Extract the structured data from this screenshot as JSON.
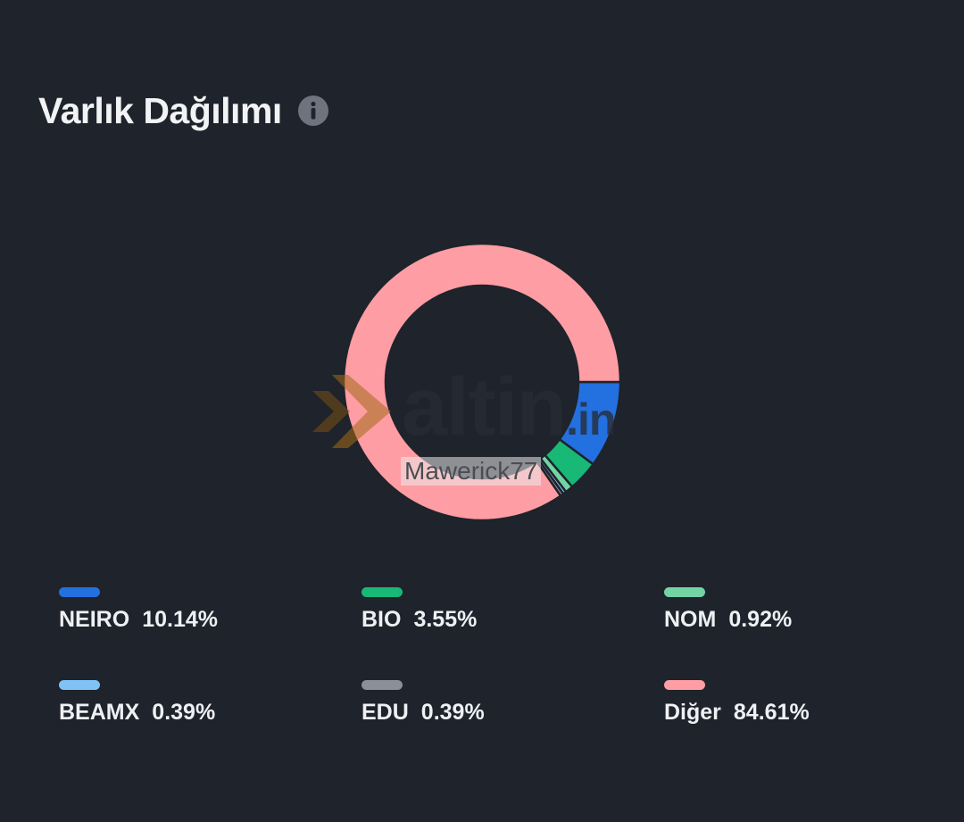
{
  "header": {
    "title": "Varlık Dağılımı",
    "info_icon": "info-icon"
  },
  "watermark": {
    "brand": "altin",
    "brand_ext": ".in",
    "user": "Mawerick77"
  },
  "colors": {
    "background": "#1f232b",
    "NEIRO": "#2370e0",
    "BIO": "#18b877",
    "NOM": "#72d4a4",
    "BEAMX": "#80c2f6",
    "EDU": "#8a8f99",
    "Diğer": "#fe9da3"
  },
  "chart_data": {
    "type": "pie",
    "donut": true,
    "title": "",
    "legend": "bottom",
    "series": [
      {
        "values": [
          {
            "label": "NEIRO",
            "value": 10.14,
            "display": "10.14%",
            "color": "#2370e0"
          },
          {
            "label": "BIO",
            "value": 3.55,
            "display": "3.55%",
            "color": "#18b877"
          },
          {
            "label": "NOM",
            "value": 0.92,
            "display": "0.92%",
            "color": "#72d4a4"
          },
          {
            "label": "BEAMX",
            "value": 0.39,
            "display": "0.39%",
            "color": "#80c2f6"
          },
          {
            "label": "EDU",
            "value": 0.39,
            "display": "0.39%",
            "color": "#8a8f99"
          },
          {
            "label": "Diğer",
            "value": 84.61,
            "display": "84.61%",
            "color": "#fe9da3"
          }
        ]
      }
    ]
  }
}
